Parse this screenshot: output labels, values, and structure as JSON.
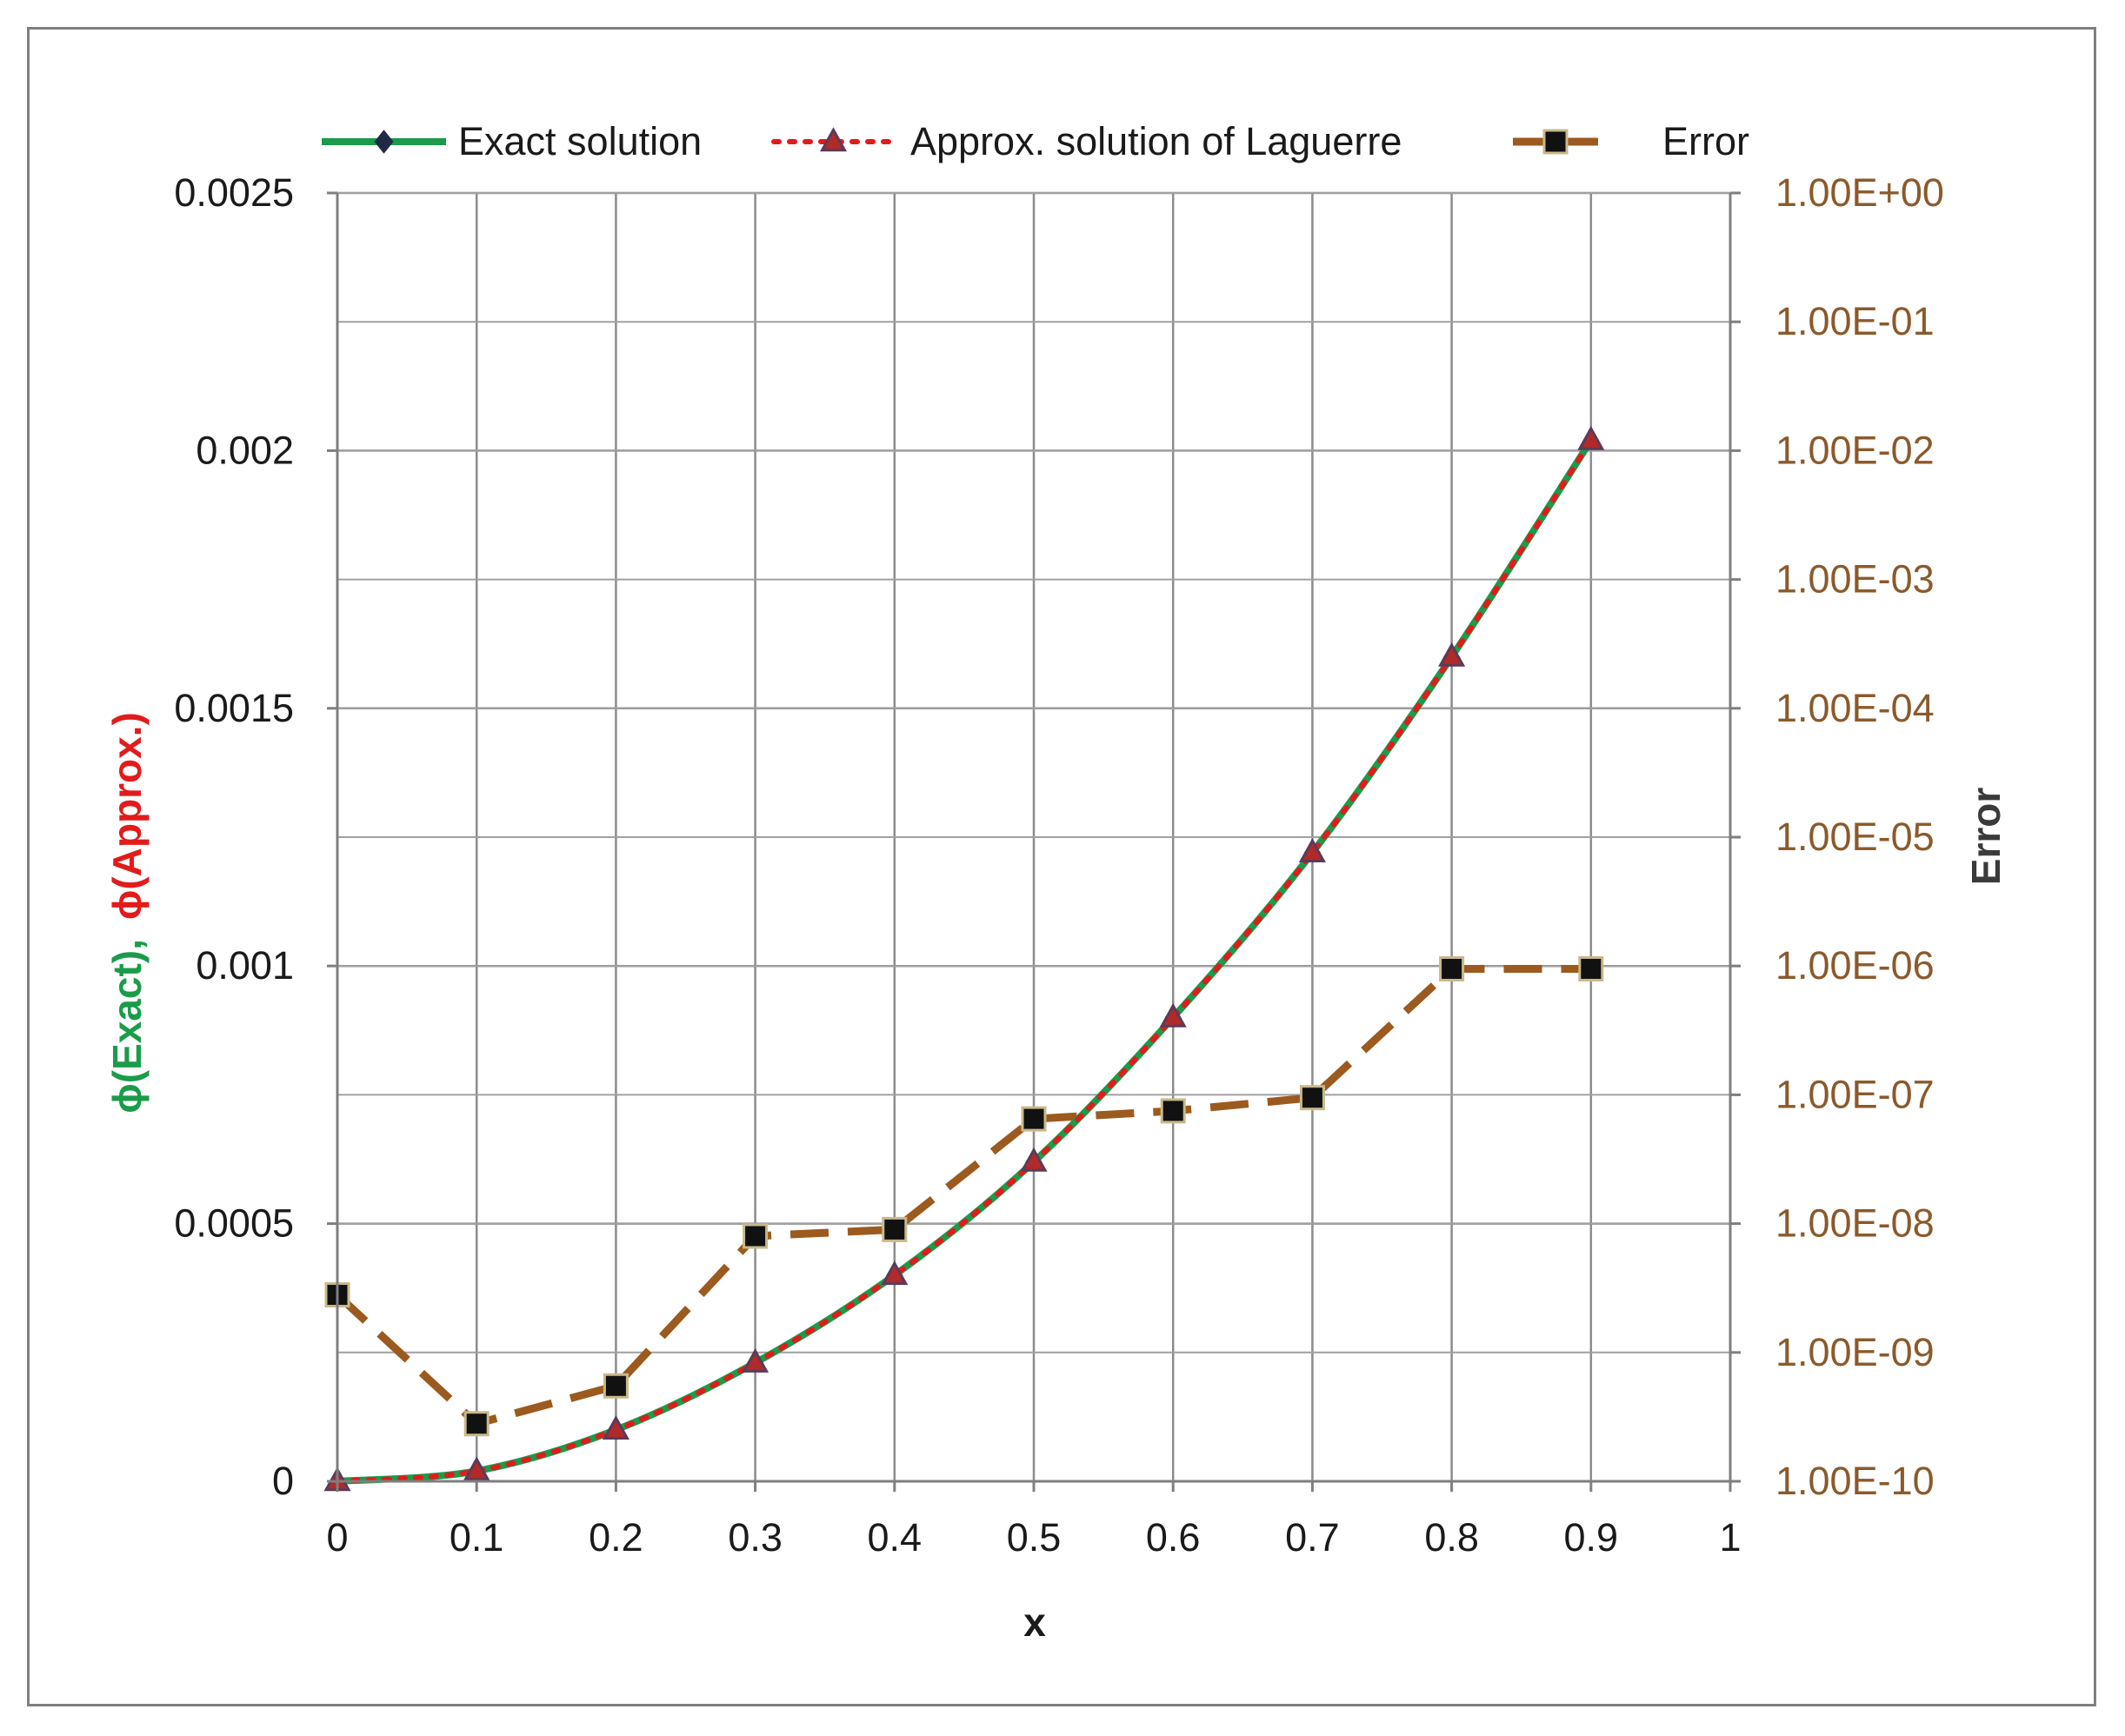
{
  "chart_data": {
    "type": "line",
    "title": "",
    "xlabel": "x",
    "ylabel_left_parts": [
      {
        "text": "ϕ(Exact),",
        "color": "#1a9c4a"
      },
      {
        "text": "ϕ(Approx.)",
        "color": "#e21b1b"
      }
    ],
    "ylabel_right": "Error",
    "xlim": [
      0,
      1
    ],
    "ylim_left": [
      0,
      0.0025
    ],
    "ylim_right_log10": [
      -10,
      0
    ],
    "x_ticks": [
      0,
      0.1,
      0.2,
      0.3,
      0.4,
      0.5,
      0.6,
      0.7,
      0.8,
      0.9,
      1
    ],
    "x_tick_labels": [
      "0",
      "0.1",
      "0.2",
      "0.3",
      "0.4",
      "0.5",
      "0.6",
      "0.7",
      "0.8",
      "0.9",
      "1"
    ],
    "y_left_ticks": [
      0,
      0.0005,
      0.001,
      0.0015,
      0.002,
      0.0025
    ],
    "y_left_tick_labels": [
      "0",
      "0.0005",
      "0.001",
      "0.0015",
      "0.002",
      "0.0025"
    ],
    "y_right_ticks": [
      1e-10,
      1e-09,
      1e-08,
      1e-07,
      1e-06,
      1e-05,
      0.0001,
      0.001,
      0.01,
      0.1,
      1
    ],
    "y_right_tick_labels": [
      "1.00E-10",
      "1.00E-09",
      "1.00E-08",
      "1.00E-07",
      "1.00E-06",
      "1.00E-05",
      "1.00E-04",
      "1.00E-03",
      "1.00E-02",
      "1.00E-01",
      "1.00E+00"
    ],
    "grid": true,
    "legend_position": "top",
    "series": [
      {
        "name": "Exact solution",
        "axis": "left",
        "color": "#1a9c4a",
        "marker": "diamond",
        "line": "solid",
        "x": [
          0,
          0.1,
          0.2,
          0.3,
          0.4,
          0.5,
          0.6,
          0.7,
          0.8,
          0.9
        ],
        "y": [
          0,
          2e-05,
          0.0001,
          0.00023,
          0.0004,
          0.00062,
          0.0009,
          0.00122,
          0.0016,
          0.00202
        ]
      },
      {
        "name": "Approx. solution of Laguerre",
        "axis": "left",
        "color": "#e21b1b",
        "marker": "triangle",
        "line": "dotted",
        "x": [
          0,
          0.1,
          0.2,
          0.3,
          0.4,
          0.5,
          0.6,
          0.7,
          0.8,
          0.9
        ],
        "y": [
          0,
          2e-05,
          0.0001,
          0.00023,
          0.0004,
          0.00062,
          0.0009,
          0.00122,
          0.0016,
          0.00202
        ]
      },
      {
        "name": "Error",
        "axis": "right",
        "color": "#9c5a1f",
        "marker": "square",
        "line": "dashed",
        "x": [
          0,
          0.1,
          0.2,
          0.3,
          0.4,
          0.5,
          0.6,
          0.7,
          0.8,
          0.9
        ],
        "y": [
          2.8e-09,
          2.8e-10,
          5.5e-10,
          8e-09,
          9e-09,
          6.5e-08,
          7.5e-08,
          9.5e-08,
          9.5e-07,
          9.5e-07
        ]
      }
    ]
  }
}
